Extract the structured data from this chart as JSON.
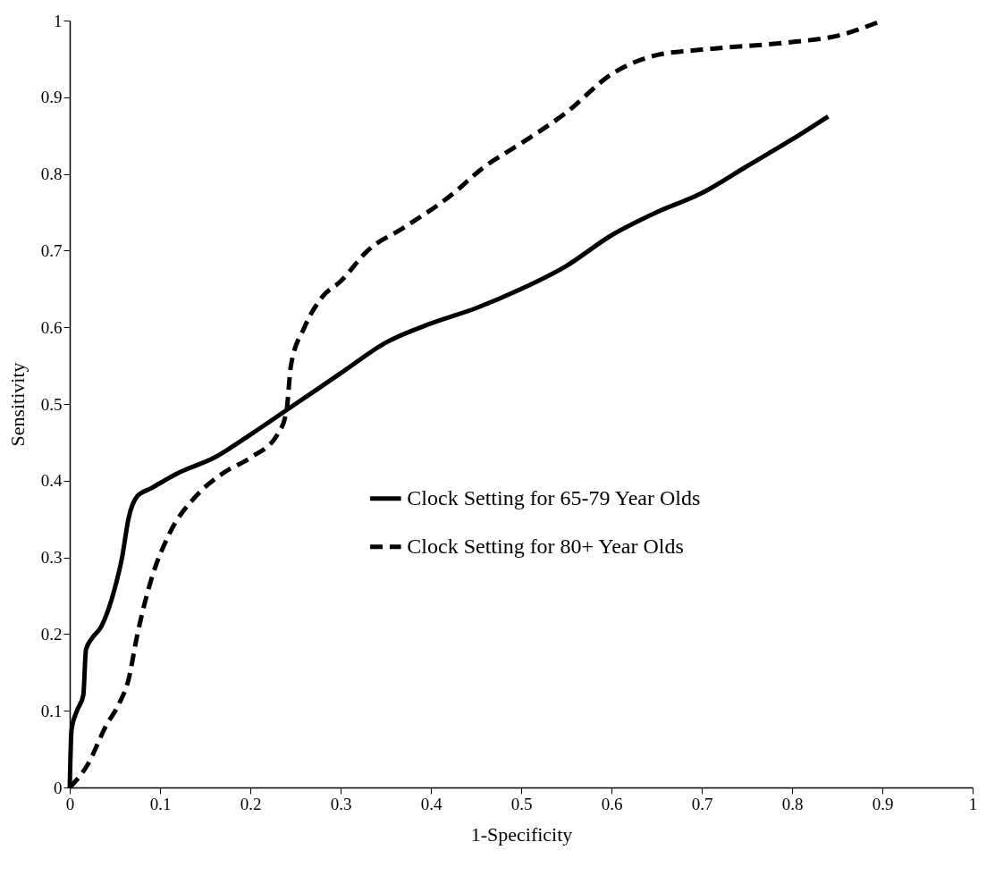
{
  "chart_data": {
    "type": "line",
    "xlabel": "1-Specificity",
    "ylabel": "Sensitivity",
    "xlim": [
      0,
      1
    ],
    "ylim": [
      0,
      1
    ],
    "xticks": [
      0,
      0.1,
      0.2,
      0.3,
      0.4,
      0.5,
      0.6,
      0.7,
      0.8,
      0.9,
      1
    ],
    "yticks": [
      0,
      0.1,
      0.2,
      0.3,
      0.4,
      0.5,
      0.6,
      0.7,
      0.8,
      0.9,
      1
    ],
    "grid": false,
    "legend": "right",
    "marker": "none",
    "series": [
      {
        "name": "Clock Setting for 65-79 Year Olds",
        "color": "#000000",
        "line_style": "solid",
        "x": [
          0,
          0.002,
          0.008,
          0.015,
          0.018,
          0.025,
          0.035,
          0.05,
          0.058,
          0.065,
          0.075,
          0.09,
          0.12,
          0.16,
          0.2,
          0.25,
          0.3,
          0.35,
          0.4,
          0.45,
          0.5,
          0.55,
          0.6,
          0.65,
          0.7,
          0.75,
          0.8,
          0.84
        ],
        "values": [
          0,
          0.075,
          0.1,
          0.12,
          0.18,
          0.195,
          0.21,
          0.26,
          0.3,
          0.35,
          0.38,
          0.39,
          0.41,
          0.43,
          0.46,
          0.5,
          0.54,
          0.58,
          0.605,
          0.625,
          0.65,
          0.68,
          0.72,
          0.75,
          0.775,
          0.81,
          0.845,
          0.875
        ]
      },
      {
        "name": "Clock Setting for 80+ Year Olds",
        "color": "#000000",
        "line_style": "dashed",
        "x": [
          0,
          0.02,
          0.04,
          0.055,
          0.065,
          0.075,
          0.09,
          0.11,
          0.14,
          0.17,
          0.2,
          0.23,
          0.24,
          0.245,
          0.26,
          0.28,
          0.3,
          0.33,
          0.37,
          0.42,
          0.46,
          0.5,
          0.55,
          0.6,
          0.65,
          0.7,
          0.8,
          0.85,
          0.9
        ],
        "values": [
          0,
          0.03,
          0.08,
          0.11,
          0.14,
          0.2,
          0.27,
          0.33,
          0.38,
          0.41,
          0.43,
          0.46,
          0.49,
          0.55,
          0.6,
          0.64,
          0.66,
          0.7,
          0.73,
          0.77,
          0.81,
          0.84,
          0.88,
          0.93,
          0.955,
          0.962,
          0.972,
          0.98,
          1.0
        ]
      }
    ]
  }
}
